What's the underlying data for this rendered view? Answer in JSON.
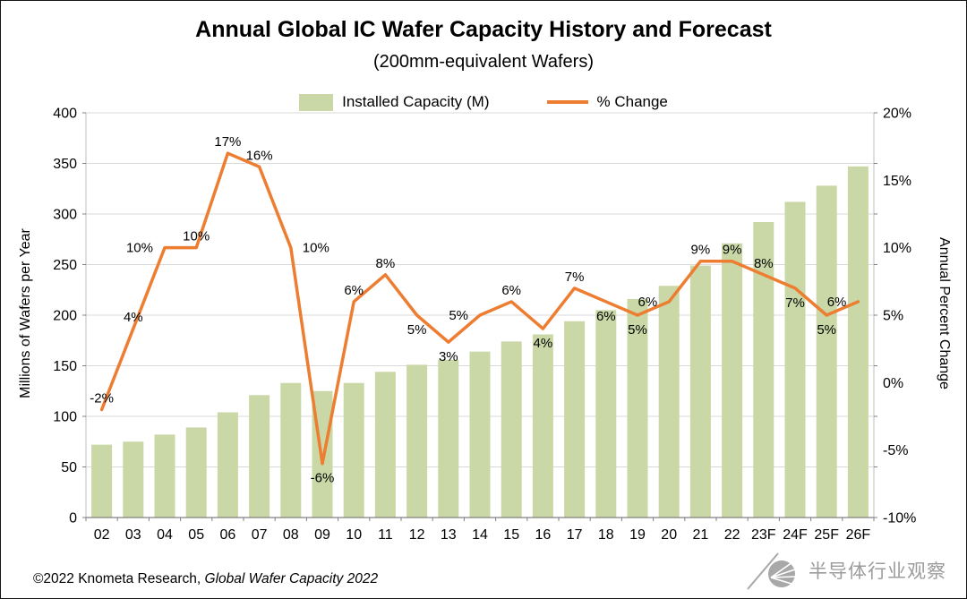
{
  "title": "Annual Global IC Wafer Capacity History and Forecast",
  "subtitle": "(200mm-equivalent Wafers)",
  "legend": {
    "bars_label": "Installed Capacity (M)",
    "line_label": "% Change"
  },
  "axes": {
    "left_title": "Millions of Wafers per Year",
    "right_title": "Annual Percent Change"
  },
  "footer": {
    "copyright": "©2022 Knometa Research, ",
    "report": "Global Wafer Capacity 2022"
  },
  "watermark": {
    "text": "半导体行业观察"
  },
  "chart_data": {
    "type": "bar+line",
    "title": "Annual Global IC Wafer Capacity History and Forecast",
    "subtitle": "(200mm-equivalent Wafers)",
    "legend_position": "top",
    "grid": true,
    "categories": [
      "02",
      "03",
      "04",
      "05",
      "06",
      "07",
      "08",
      "09",
      "10",
      "11",
      "12",
      "13",
      "14",
      "15",
      "16",
      "17",
      "18",
      "19",
      "20",
      "21",
      "22",
      "23F",
      "24F",
      "25F",
      "26F"
    ],
    "series": [
      {
        "name": "Installed Capacity (M)",
        "type": "bar",
        "axis": "left",
        "values": [
          72,
          75,
          82,
          89,
          104,
          121,
          133,
          125,
          133,
          144,
          151,
          156,
          164,
          174,
          181,
          194,
          205,
          216,
          229,
          249,
          271,
          292,
          312,
          328,
          347
        ]
      },
      {
        "name": "% Change",
        "type": "line",
        "axis": "right",
        "values": [
          -2,
          4,
          10,
          10,
          17,
          16,
          10,
          -6,
          6,
          8,
          5,
          3,
          5,
          6,
          4,
          7,
          6,
          5,
          6,
          9,
          9,
          8,
          7,
          5,
          6
        ],
        "labels": [
          "-2%",
          "4%",
          "10%",
          "10%",
          "17%",
          "16%",
          "10%",
          "-6%",
          "6%",
          "8%",
          "5%",
          "3%",
          "5%",
          "6%",
          "4%",
          "7%",
          "6%",
          "5%",
          "6%",
          "9%",
          "9%",
          "8%",
          "7%",
          "5%",
          "6%"
        ],
        "label_positions": [
          "above",
          "above",
          "left",
          "above",
          "above",
          "above",
          "right",
          "below",
          "above",
          "above",
          "below",
          "below",
          "left",
          "above",
          "below",
          "above",
          "below",
          "below",
          "left",
          "above",
          "above",
          "above",
          "below",
          "below",
          "left"
        ]
      }
    ],
    "left_axis": {
      "title": "Millions of Wafers per Year",
      "min": 0,
      "max": 400,
      "step": 50,
      "tick_labels": [
        "400",
        "350",
        "300",
        "250",
        "200",
        "150",
        "100",
        "50",
        "0"
      ]
    },
    "right_axis": {
      "title": "Annual Percent Change",
      "min": -10,
      "max": 20,
      "step": 5,
      "tick_labels": [
        "20%",
        "15%",
        "10%",
        "5%",
        "0%",
        "-5%",
        "-10%"
      ]
    },
    "colors": {
      "bar": "#c9d8a6",
      "line": "#ed7d31",
      "grid": "#d9d9d9",
      "axis": "#808080",
      "frame": "#bfbfbf",
      "text": "#000000",
      "watermark": "#9c9c9c"
    }
  }
}
